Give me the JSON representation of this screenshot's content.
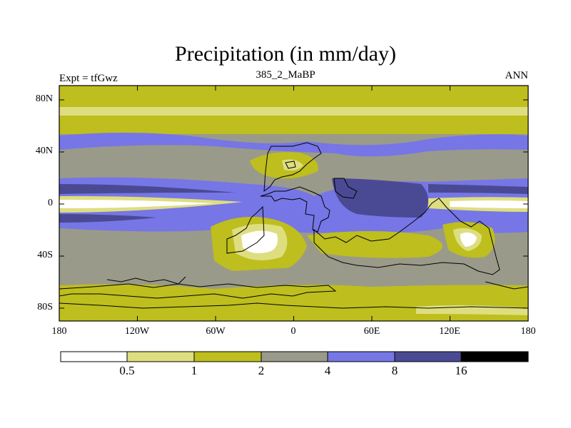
{
  "title": "Precipitation (in mm/day)",
  "left_label": "Expt = tfGwz",
  "center_label": "385_2_MaBP",
  "right_label": "ANN",
  "y_ticks": [
    "80N",
    "40N",
    "0",
    "40S",
    "80S"
  ],
  "x_ticks": [
    "180",
    "120W",
    "60W",
    "0",
    "60E",
    "120E",
    "180"
  ],
  "colorbar": {
    "labels": [
      "0.5",
      "1",
      "2",
      "4",
      "8",
      "16"
    ],
    "colors": [
      "#ffffff",
      "#dede80",
      "#bebe1e",
      "#9a9a8a",
      "#7676e6",
      "#4a4a94",
      "#000000"
    ]
  },
  "map_colors": {
    "white": "#ffffff",
    "light_yellow": "#dede80",
    "olive": "#bebe1e",
    "gray": "#9a9a8a",
    "blue": "#7676e6",
    "navy": "#4a4a94"
  }
}
